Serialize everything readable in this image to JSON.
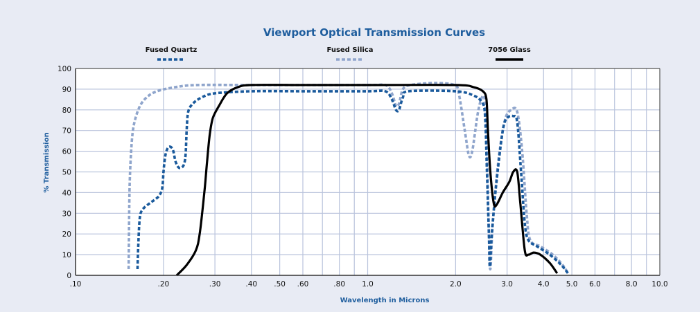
{
  "chart_data": {
    "type": "line",
    "title": "Viewport Optical Transmission Curves",
    "xlabel": "Wavelength in Microns",
    "ylabel": "% Transmission",
    "x_scale": "log",
    "xlim": [
      0.1,
      10.0
    ],
    "ylim": [
      0,
      100
    ],
    "grid": true,
    "legend_position": "top",
    "x_ticks": [
      {
        "value": 0.1,
        "label": ".10"
      },
      {
        "value": 0.2,
        "label": ".20"
      },
      {
        "value": 0.3,
        "label": ".30"
      },
      {
        "value": 0.4,
        "label": ".40"
      },
      {
        "value": 0.5,
        "label": ".50"
      },
      {
        "value": 0.6,
        "label": ".60"
      },
      {
        "value": 0.8,
        "label": ".80"
      },
      {
        "value": 1.0,
        "label": "1.0"
      },
      {
        "value": 2.0,
        "label": "2.0"
      },
      {
        "value": 3.0,
        "label": "3.0"
      },
      {
        "value": 4.0,
        "label": "4.0"
      },
      {
        "value": 5.0,
        "label": "5.0"
      },
      {
        "value": 6.0,
        "label": "6.0"
      },
      {
        "value": 8.0,
        "label": "8.0"
      },
      {
        "value": 10.0,
        "label": "10.0"
      }
    ],
    "x_minor_gridlines": [
      0.7,
      0.9,
      7.0,
      9.0
    ],
    "y_ticks": [
      0,
      10,
      20,
      30,
      40,
      50,
      60,
      70,
      80,
      90,
      100
    ],
    "series": [
      {
        "name": "Fused Quartz",
        "color": "#1a5a9c",
        "style": "dashed",
        "points": [
          [
            0.163,
            3
          ],
          [
            0.164,
            15
          ],
          [
            0.166,
            28
          ],
          [
            0.17,
            32
          ],
          [
            0.18,
            35
          ],
          [
            0.192,
            38
          ],
          [
            0.198,
            42
          ],
          [
            0.2,
            50
          ],
          [
            0.203,
            58
          ],
          [
            0.208,
            62
          ],
          [
            0.215,
            61
          ],
          [
            0.22,
            55
          ],
          [
            0.226,
            52
          ],
          [
            0.234,
            53
          ],
          [
            0.238,
            58
          ],
          [
            0.24,
            70
          ],
          [
            0.243,
            79
          ],
          [
            0.252,
            83
          ],
          [
            0.27,
            86
          ],
          [
            0.3,
            88
          ],
          [
            0.4,
            89
          ],
          [
            0.6,
            89
          ],
          [
            1.0,
            89
          ],
          [
            1.15,
            89
          ],
          [
            1.21,
            85
          ],
          [
            1.25,
            80
          ],
          [
            1.28,
            80
          ],
          [
            1.32,
            86
          ],
          [
            1.38,
            89
          ],
          [
            2.0,
            89
          ],
          [
            2.3,
            87
          ],
          [
            2.45,
            84
          ],
          [
            2.52,
            78
          ],
          [
            2.56,
            50
          ],
          [
            2.6,
            20
          ],
          [
            2.62,
            4
          ],
          [
            2.66,
            20
          ],
          [
            2.76,
            45
          ],
          [
            2.9,
            70
          ],
          [
            3.0,
            76
          ],
          [
            3.15,
            77
          ],
          [
            3.25,
            74
          ],
          [
            3.35,
            50
          ],
          [
            3.45,
            25
          ],
          [
            3.55,
            17
          ],
          [
            3.8,
            14
          ],
          [
            4.2,
            10
          ],
          [
            4.6,
            5
          ],
          [
            4.85,
            1
          ]
        ]
      },
      {
        "name": "Fused Silica",
        "color": "#8fa5cc",
        "style": "dashed",
        "points": [
          [
            0.152,
            3
          ],
          [
            0.153,
            40
          ],
          [
            0.155,
            60
          ],
          [
            0.158,
            72
          ],
          [
            0.165,
            81
          ],
          [
            0.175,
            86
          ],
          [
            0.19,
            89
          ],
          [
            0.22,
            91
          ],
          [
            0.26,
            92
          ],
          [
            0.4,
            92
          ],
          [
            1.0,
            92
          ],
          [
            1.15,
            92
          ],
          [
            1.21,
            88
          ],
          [
            1.25,
            82
          ],
          [
            1.28,
            83
          ],
          [
            1.32,
            90
          ],
          [
            1.4,
            92
          ],
          [
            1.7,
            93
          ],
          [
            1.98,
            92
          ],
          [
            2.05,
            88
          ],
          [
            2.15,
            70
          ],
          [
            2.22,
            58
          ],
          [
            2.28,
            60
          ],
          [
            2.38,
            78
          ],
          [
            2.46,
            86
          ],
          [
            2.52,
            84
          ],
          [
            2.56,
            60
          ],
          [
            2.6,
            20
          ],
          [
            2.63,
            3
          ],
          [
            2.68,
            25
          ],
          [
            2.8,
            55
          ],
          [
            2.95,
            75
          ],
          [
            3.1,
            80
          ],
          [
            3.25,
            79
          ],
          [
            3.38,
            60
          ],
          [
            3.5,
            30
          ],
          [
            3.6,
            17
          ],
          [
            3.9,
            14
          ],
          [
            4.3,
            10
          ],
          [
            4.65,
            5
          ],
          [
            4.85,
            1
          ]
        ]
      },
      {
        "name": "7056 Glass",
        "color": "#000000",
        "style": "solid",
        "points": [
          [
            0.222,
            0
          ],
          [
            0.24,
            5
          ],
          [
            0.258,
            12
          ],
          [
            0.266,
            20
          ],
          [
            0.276,
            40
          ],
          [
            0.282,
            55
          ],
          [
            0.288,
            68
          ],
          [
            0.295,
            76
          ],
          [
            0.31,
            82
          ],
          [
            0.33,
            88
          ],
          [
            0.36,
            91
          ],
          [
            0.4,
            92
          ],
          [
            0.6,
            92
          ],
          [
            1.0,
            92
          ],
          [
            2.0,
            92
          ],
          [
            2.3,
            91
          ],
          [
            2.48,
            89
          ],
          [
            2.55,
            85
          ],
          [
            2.58,
            70
          ],
          [
            2.63,
            50
          ],
          [
            2.7,
            35
          ],
          [
            2.76,
            34
          ],
          [
            2.9,
            40
          ],
          [
            3.05,
            45
          ],
          [
            3.15,
            50
          ],
          [
            3.25,
            50
          ],
          [
            3.33,
            35
          ],
          [
            3.45,
            12
          ],
          [
            3.55,
            10
          ],
          [
            3.7,
            11
          ],
          [
            3.9,
            10
          ],
          [
            4.2,
            6
          ],
          [
            4.45,
            1
          ]
        ]
      }
    ]
  }
}
